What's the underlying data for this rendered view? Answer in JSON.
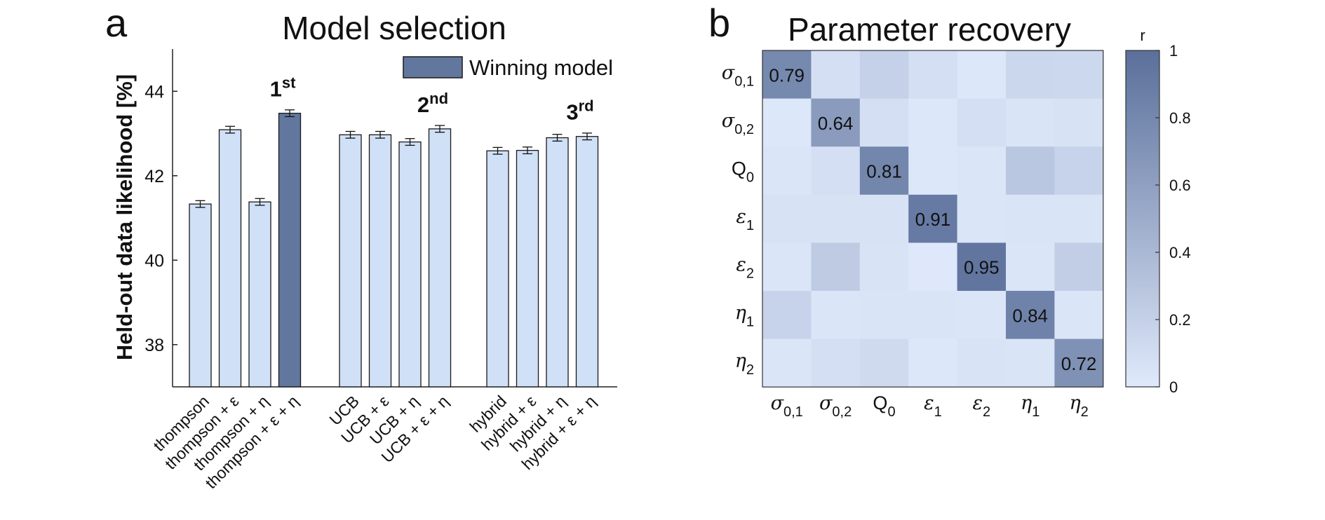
{
  "colors": {
    "bar_default": "#cfe0f7",
    "bar_winner": "#62779e",
    "bar_stroke": "#1a1a1a",
    "heat_low": "#dfe9fb",
    "heat_high": "#5a6f9a"
  },
  "chart_data": [
    {
      "type": "bar",
      "panel_label": "a",
      "title": "Model selection",
      "ylabel": "Held-out data likelihood [%]",
      "ylim": [
        37,
        45
      ],
      "yticks": [
        "38",
        "40",
        "42",
        "44"
      ],
      "legend": {
        "label": "Winning model",
        "position": "top-right"
      },
      "groups": [
        {
          "categories": [
            "thompson",
            "thompson + ε",
            "thompson + η",
            "thompson + ε + η"
          ],
          "values": [
            41.33,
            43.09,
            41.38,
            43.48
          ],
          "errors": [
            0.08,
            0.08,
            0.08,
            0.08
          ],
          "rank_label": "1",
          "rank_sup": "st",
          "rank_index": 3,
          "winner_index": 3
        },
        {
          "categories": [
            "UCB",
            "UCB + ε",
            "UCB + η",
            "UCB + ε + η"
          ],
          "values": [
            42.97,
            42.97,
            42.8,
            43.11
          ],
          "errors": [
            0.08,
            0.08,
            0.08,
            0.08
          ],
          "rank_label": "2",
          "rank_sup": "nd",
          "rank_index": 3
        },
        {
          "categories": [
            "hybrid",
            "hybrid + ε",
            "hybrid + η",
            "hybrid + ε + η"
          ],
          "values": [
            42.59,
            42.6,
            42.9,
            42.93
          ],
          "errors": [
            0.08,
            0.08,
            0.08,
            0.08
          ],
          "rank_label": "3",
          "rank_sup": "rd",
          "rank_index": 3
        }
      ]
    },
    {
      "type": "heatmap",
      "panel_label": "b",
      "title": "Parameter recovery",
      "colorbar_label": "r",
      "colorbar_ticks": [
        "0",
        "0.2",
        "0.4",
        "0.6",
        "0.8",
        "1"
      ],
      "clim": [
        0,
        1
      ],
      "row_labels": [
        {
          "base": "σ",
          "sub": "0,1",
          "italic": true
        },
        {
          "base": "σ",
          "sub": "0,2",
          "italic": true
        },
        {
          "base": "Q",
          "sub": "0",
          "italic": false
        },
        {
          "base": "ε",
          "sub": "1",
          "italic": true
        },
        {
          "base": "ε",
          "sub": "2",
          "italic": true
        },
        {
          "base": "η",
          "sub": "1",
          "italic": true
        },
        {
          "base": "η",
          "sub": "2",
          "italic": true
        }
      ],
      "col_labels": [
        {
          "base": "σ",
          "sub": "0,1",
          "italic": true
        },
        {
          "base": "σ",
          "sub": "0,2",
          "italic": true
        },
        {
          "base": "Q",
          "sub": "0",
          "italic": false
        },
        {
          "base": "ε",
          "sub": "1",
          "italic": true
        },
        {
          "base": "ε",
          "sub": "2",
          "italic": true
        },
        {
          "base": "η",
          "sub": "1",
          "italic": true
        },
        {
          "base": "η",
          "sub": "2",
          "italic": true
        }
      ],
      "values": [
        [
          0.79,
          0.08,
          0.2,
          0.08,
          0.02,
          0.15,
          0.14
        ],
        [
          0.02,
          0.64,
          0.08,
          0.02,
          0.08,
          0.04,
          0.06
        ],
        [
          0.03,
          0.08,
          0.81,
          0.02,
          0.03,
          0.28,
          0.18
        ],
        [
          0.06,
          0.06,
          0.06,
          0.91,
          0.03,
          0.04,
          0.04
        ],
        [
          0.03,
          0.25,
          0.05,
          0.01,
          0.95,
          0.03,
          0.22
        ],
        [
          0.18,
          0.03,
          0.04,
          0.04,
          0.03,
          0.84,
          0.03
        ],
        [
          0.03,
          0.08,
          0.12,
          0.02,
          0.05,
          0.04,
          0.72
        ]
      ],
      "diagonal_labels": [
        "0.79",
        "0.64",
        "0.81",
        "0.91",
        "0.95",
        "0.84",
        "0.72"
      ]
    }
  ]
}
